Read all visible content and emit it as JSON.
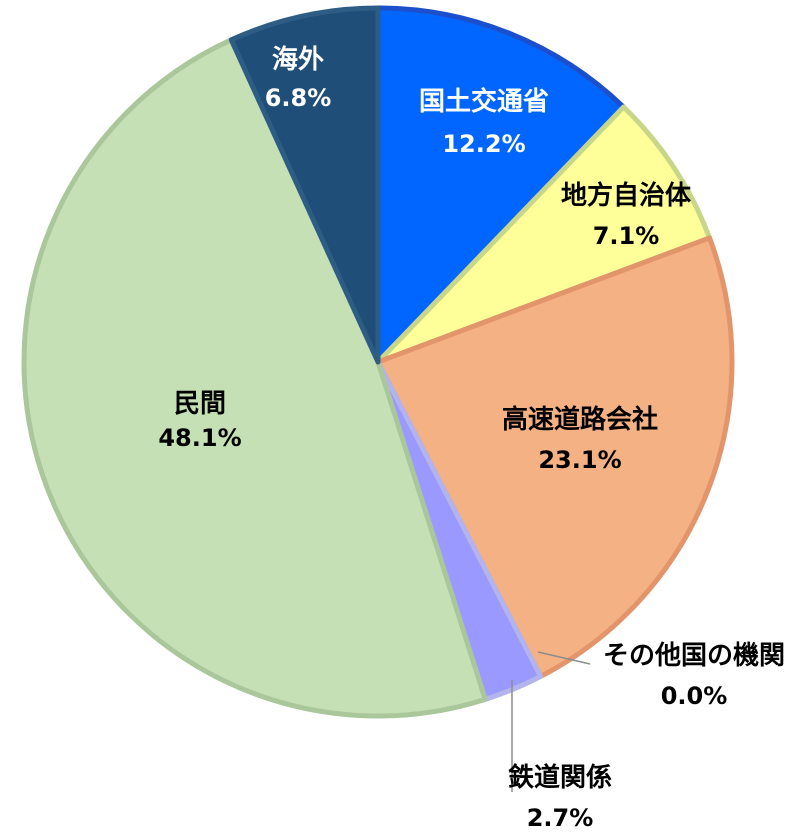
{
  "chart_data": {
    "type": "pie",
    "start_angle_deg": 0,
    "direction": "clockwise",
    "slices": [
      {
        "label": "国土交通省",
        "value": 12.2,
        "value_label": "12.2%",
        "color": "#0066ff",
        "border": "#1c4fcc",
        "label_color": "#ffffff"
      },
      {
        "label": "地方自治体",
        "value": 7.1,
        "value_label": "7.1%",
        "color": "#ffff99",
        "border": "#c8d68a",
        "label_color": "#000000"
      },
      {
        "label": "高速道路会社",
        "value": 23.1,
        "value_label": "23.1%",
        "color": "#f4b183",
        "border": "#e2956a",
        "label_color": "#000000"
      },
      {
        "label": "その他国の機関",
        "value": 0.0,
        "value_label": "0.0%",
        "color": "#cccccc",
        "border": "#999999",
        "label_color": "#000000"
      },
      {
        "label": "鉄道関係",
        "value": 2.7,
        "value_label": "2.7%",
        "color": "#9999ff",
        "border": "#b3b3ee",
        "label_color": "#000000"
      },
      {
        "label": "民間",
        "value": 48.1,
        "value_label": "48.1%",
        "color": "#c5e0b4",
        "border": "#a9c79a",
        "label_color": "#000000"
      },
      {
        "label": "海外",
        "value": 6.8,
        "value_label": "6.8%",
        "color": "#1f4e79",
        "border": "#2d5d85",
        "label_color": "#ffffff"
      }
    ]
  }
}
